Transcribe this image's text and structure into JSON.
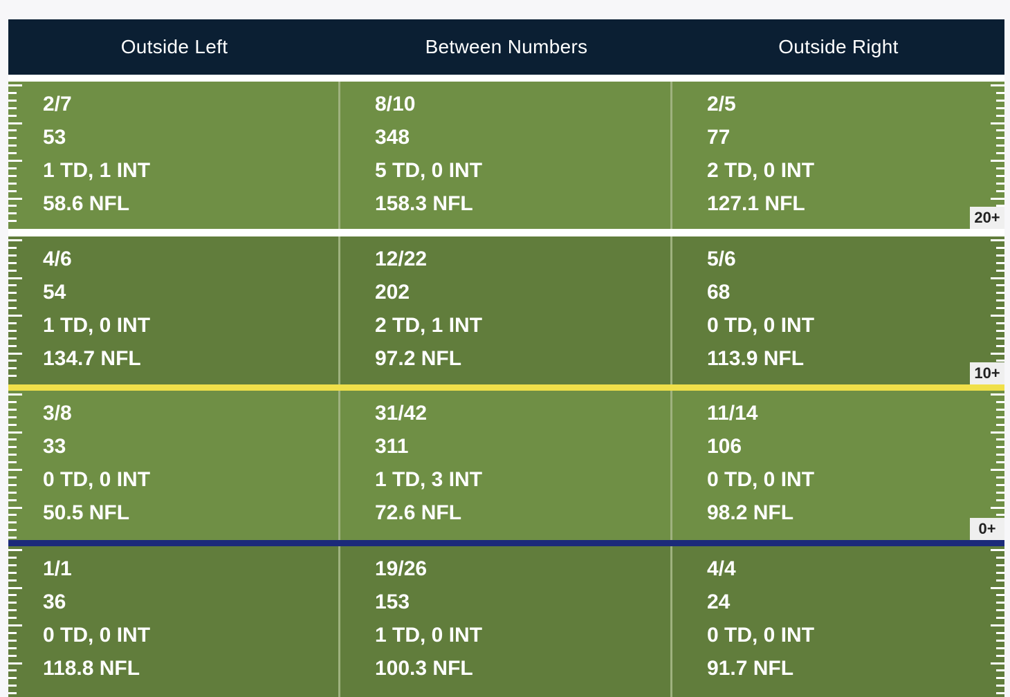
{
  "chart_data": {
    "type": "table",
    "columns": [
      "Outside Left",
      "Between Numbers",
      "Outside Right"
    ],
    "rows": [
      {
        "marker": "20+",
        "cells": [
          {
            "completions": "2/7",
            "yards": "53",
            "td_int": "1 TD, 1 INT",
            "rating": "58.6 NFL"
          },
          {
            "completions": "8/10",
            "yards": "348",
            "td_int": "5 TD, 0 INT",
            "rating": "158.3 NFL"
          },
          {
            "completions": "2/5",
            "yards": "77",
            "td_int": "2 TD, 0 INT",
            "rating": "127.1 NFL"
          }
        ]
      },
      {
        "marker": "10+",
        "cells": [
          {
            "completions": "4/6",
            "yards": "54",
            "td_int": "1 TD, 0 INT",
            "rating": "134.7 NFL"
          },
          {
            "completions": "12/22",
            "yards": "202",
            "td_int": "2 TD, 1 INT",
            "rating": "97.2 NFL"
          },
          {
            "completions": "5/6",
            "yards": "68",
            "td_int": "0 TD, 0 INT",
            "rating": "113.9 NFL"
          }
        ]
      },
      {
        "marker": "0+",
        "cells": [
          {
            "completions": "3/8",
            "yards": "33",
            "td_int": "0 TD, 0 INT",
            "rating": "50.5 NFL"
          },
          {
            "completions": "31/42",
            "yards": "311",
            "td_int": "1 TD, 3 INT",
            "rating": "72.6 NFL"
          },
          {
            "completions": "11/14",
            "yards": "106",
            "td_int": "0 TD, 0 INT",
            "rating": "98.2 NFL"
          }
        ]
      },
      {
        "marker": "",
        "cells": [
          {
            "completions": "1/1",
            "yards": "36",
            "td_int": "0 TD, 0 INT",
            "rating": "118.8 NFL"
          },
          {
            "completions": "19/26",
            "yards": "153",
            "td_int": "1 TD, 0 INT",
            "rating": "100.3 NFL"
          },
          {
            "completions": "4/4",
            "yards": "24",
            "td_int": "0 TD, 0 INT",
            "rating": "91.7 NFL"
          }
        ]
      }
    ]
  },
  "colors": {
    "header_bg": "#0b1f33",
    "field_light": "#6f8f45",
    "field_dark": "#617d3c",
    "line_white": "#ffffff",
    "first_down_line": "#f0e04a",
    "line_of_scrimmage": "#1c2a7a"
  }
}
